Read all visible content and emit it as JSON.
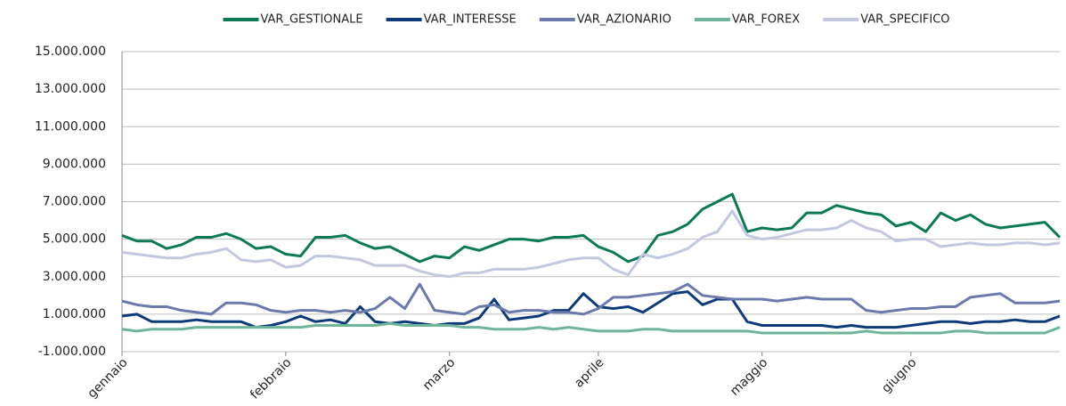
{
  "chart_data": {
    "type": "line",
    "categories": [
      "gennaio",
      null,
      null,
      null,
      null,
      null,
      null,
      null,
      null,
      null,
      null,
      "febbraio",
      null,
      null,
      null,
      null,
      null,
      null,
      null,
      null,
      null,
      null,
      "marzo",
      null,
      null,
      null,
      null,
      null,
      null,
      null,
      null,
      null,
      "aprile",
      null,
      null,
      null,
      null,
      null,
      null,
      null,
      null,
      null,
      null,
      "maggio",
      null,
      null,
      null,
      null,
      null,
      null,
      null,
      null,
      null,
      "giugno",
      null,
      null,
      null,
      null,
      null,
      null,
      null,
      null,
      null,
      null
    ],
    "ylim": [
      -1000000,
      15000000
    ],
    "yticks": [
      {
        "value": -1000000,
        "label": "-1.000.000"
      },
      {
        "value": 1000000,
        "label": "1.000.000"
      },
      {
        "value": 3000000,
        "label": "3.000.000"
      },
      {
        "value": 5000000,
        "label": "5.000.000"
      },
      {
        "value": 7000000,
        "label": "7.000.000"
      },
      {
        "value": 9000000,
        "label": "9.000.000"
      },
      {
        "value": 11000000,
        "label": "11.000.000"
      },
      {
        "value": 13000000,
        "label": "13.000.000"
      },
      {
        "value": 15000000,
        "label": "15.000.000"
      }
    ],
    "grid": true,
    "legend": "top",
    "series": [
      {
        "name": "VAR_GESTIONALE",
        "color": "#0b7a55",
        "values": [
          5200000,
          4900000,
          4900000,
          4500000,
          4700000,
          5100000,
          5100000,
          5300000,
          5000000,
          4500000,
          4600000,
          4200000,
          4100000,
          5100000,
          5100000,
          5200000,
          4800000,
          4500000,
          4600000,
          4200000,
          3800000,
          4100000,
          4000000,
          4600000,
          4400000,
          4700000,
          5000000,
          5000000,
          4900000,
          5100000,
          5100000,
          5200000,
          4600000,
          4300000,
          3800000,
          4100000,
          5200000,
          5400000,
          5800000,
          6600000,
          7000000,
          7400000,
          5400000,
          5600000,
          5500000,
          5600000,
          6400000,
          6400000,
          6800000,
          6600000,
          6400000,
          6300000,
          5700000,
          5900000,
          5400000,
          6400000,
          6000000,
          6300000,
          5800000,
          5600000,
          5700000,
          5800000,
          5900000,
          5100000
        ]
      },
      {
        "name": "VAR_INTERESSE",
        "color": "#0d3b7a",
        "values": [
          900000,
          1000000,
          600000,
          600000,
          600000,
          700000,
          600000,
          600000,
          600000,
          300000,
          400000,
          600000,
          900000,
          600000,
          700000,
          500000,
          1400000,
          600000,
          500000,
          600000,
          500000,
          400000,
          500000,
          500000,
          800000,
          1800000,
          700000,
          800000,
          900000,
          1200000,
          1200000,
          2100000,
          1400000,
          1300000,
          1400000,
          1100000,
          1600000,
          2100000,
          2200000,
          1500000,
          1800000,
          1800000,
          600000,
          400000,
          400000,
          400000,
          400000,
          400000,
          300000,
          400000,
          300000,
          300000,
          300000,
          400000,
          500000,
          600000,
          600000,
          500000,
          600000,
          600000,
          700000,
          600000,
          600000,
          900000
        ]
      },
      {
        "name": "VAR_AZIONARIO",
        "color": "#6b7aac",
        "values": [
          1700000,
          1500000,
          1400000,
          1400000,
          1200000,
          1100000,
          1000000,
          1600000,
          1600000,
          1500000,
          1200000,
          1100000,
          1200000,
          1200000,
          1100000,
          1200000,
          1100000,
          1300000,
          1900000,
          1300000,
          2600000,
          1200000,
          1100000,
          1000000,
          1400000,
          1500000,
          1100000,
          1200000,
          1200000,
          1100000,
          1100000,
          1000000,
          1300000,
          1900000,
          1900000,
          2000000,
          2100000,
          2200000,
          2600000,
          2000000,
          1900000,
          1800000,
          1800000,
          1800000,
          1700000,
          1800000,
          1900000,
          1800000,
          1800000,
          1800000,
          1200000,
          1100000,
          1200000,
          1300000,
          1300000,
          1400000,
          1400000,
          1900000,
          2000000,
          2100000,
          1600000,
          1600000,
          1600000,
          1700000
        ]
      },
      {
        "name": "VAR_FOREX",
        "color": "#6fb59a",
        "values": [
          200000,
          100000,
          200000,
          200000,
          200000,
          300000,
          300000,
          300000,
          300000,
          300000,
          300000,
          300000,
          300000,
          400000,
          400000,
          400000,
          400000,
          400000,
          500000,
          400000,
          400000,
          400000,
          400000,
          300000,
          300000,
          200000,
          200000,
          200000,
          300000,
          200000,
          300000,
          200000,
          100000,
          100000,
          100000,
          200000,
          200000,
          100000,
          100000,
          100000,
          100000,
          100000,
          100000,
          0,
          0,
          0,
          0,
          0,
          0,
          0,
          100000,
          0,
          0,
          0,
          0,
          0,
          100000,
          100000,
          0,
          0,
          0,
          0,
          0,
          300000
        ]
      },
      {
        "name": "VAR_SPECIFICO",
        "color": "#c2c8df",
        "values": [
          4300000,
          4200000,
          4100000,
          4000000,
          4000000,
          4200000,
          4300000,
          4500000,
          3900000,
          3800000,
          3900000,
          3500000,
          3600000,
          4100000,
          4100000,
          4000000,
          3900000,
          3600000,
          3600000,
          3600000,
          3300000,
          3100000,
          3000000,
          3200000,
          3200000,
          3400000,
          3400000,
          3400000,
          3500000,
          3700000,
          3900000,
          4000000,
          4000000,
          3400000,
          3100000,
          4200000,
          4000000,
          4200000,
          4500000,
          5100000,
          5400000,
          6500000,
          5200000,
          5000000,
          5100000,
          5300000,
          5500000,
          5500000,
          5600000,
          6000000,
          5600000,
          5400000,
          4900000,
          5000000,
          5000000,
          4600000,
          4700000,
          4800000,
          4700000,
          4700000,
          4800000,
          4800000,
          4700000,
          4800000
        ]
      }
    ]
  }
}
